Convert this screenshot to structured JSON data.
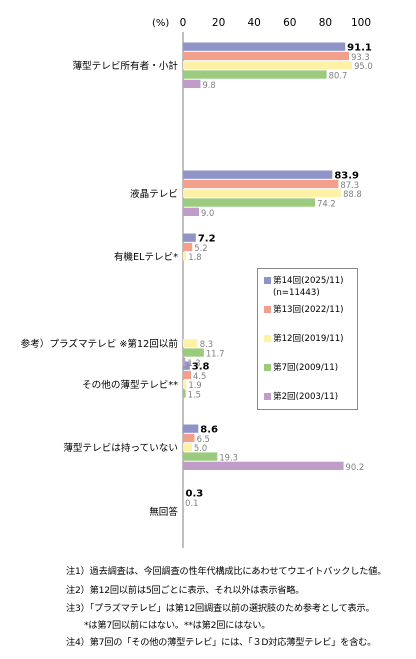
{
  "chart_data": {
    "type": "bar",
    "orientation": "horizontal",
    "unit_label": "(%)",
    "xlim": [
      0,
      100
    ],
    "ticks": [
      0,
      20,
      40,
      60,
      80,
      100
    ],
    "categories": [
      "薄型テレビ所有者・小計",
      "液晶テレビ",
      "有機ELテレビ*",
      "参考）プラズマテレビ ※第12回以前",
      "その他の薄型テレビ**",
      "薄型テレビは持っていない",
      "無回答"
    ],
    "series": [
      {
        "name": "第14回(2025/11)",
        "color": "#8e94c7",
        "values": [
          91.1,
          83.9,
          7.2,
          null,
          3.8,
          8.6,
          0.3
        ]
      },
      {
        "name": "第13回(2022/11)",
        "color": "#f2a08c",
        "values": [
          93.3,
          87.3,
          5.2,
          null,
          4.5,
          6.5,
          0.1
        ]
      },
      {
        "name": "第12回(2019/11)",
        "color": "#fff2a6",
        "values": [
          95.0,
          88.8,
          1.8,
          8.3,
          1.9,
          5.0,
          null
        ]
      },
      {
        "name": "第7回(2009/11)",
        "color": "#9bcc7e",
        "values": [
          80.7,
          74.2,
          null,
          11.7,
          1.5,
          19.3,
          null
        ]
      },
      {
        "name": "第2回(2003/11)",
        "color": "#bf9cc9",
        "values": [
          9.8,
          9.0,
          null,
          1.3,
          null,
          90.2,
          null
        ]
      }
    ],
    "legend_position": "right-middle",
    "legend_sub": "(n=11443)",
    "grid": false
  },
  "notes": [
    "注1）過去調査は、今回調査の性年代構成比にあわせてウエイトバックした値。",
    "注2）第12回以前は5回ごとに表示、それ以外は表示省略。",
    "注3）「プラズマテレビ」は第12回調査以前の選択肢のため参考として表示。",
    "　　*は第7回以前にはない。**は第2回にはない。",
    "注4）第7回の「その他の薄型テレビ」には、「３D対応薄型テレビ」を含む。"
  ]
}
